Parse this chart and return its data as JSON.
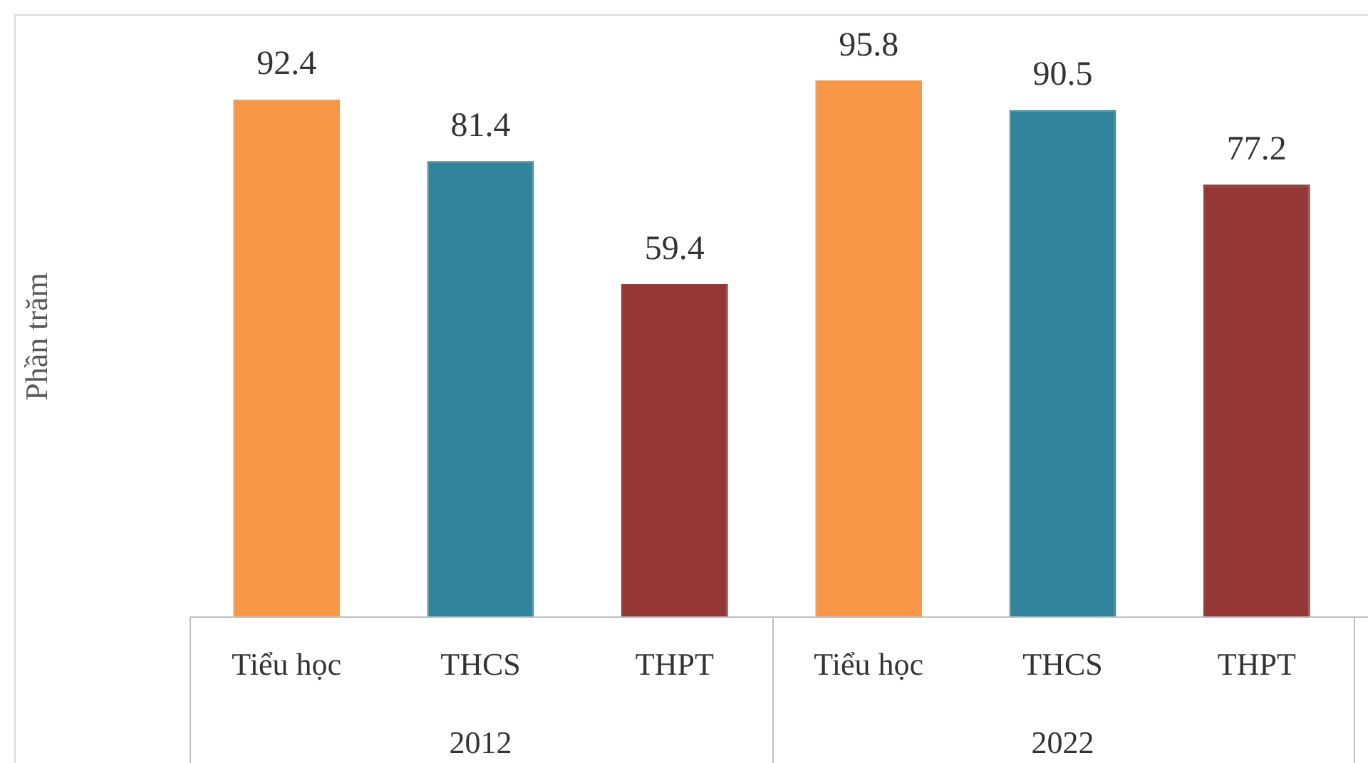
{
  "chart_data": {
    "type": "bar",
    "ylabel": "Phần trăm",
    "categories": [
      "Tiểu học",
      "THCS",
      "THPT",
      "Tiểu học",
      "THCS",
      "THPT"
    ],
    "values": [
      92.4,
      81.4,
      59.4,
      95.8,
      90.5,
      77.2
    ],
    "colors": [
      "#f79646",
      "#31849b",
      "#953735",
      "#f79646",
      "#31849b",
      "#953735"
    ],
    "data_labels": true,
    "annotations": [
      "2012",
      "2022"
    ],
    "grid": false,
    "legend": false
  }
}
